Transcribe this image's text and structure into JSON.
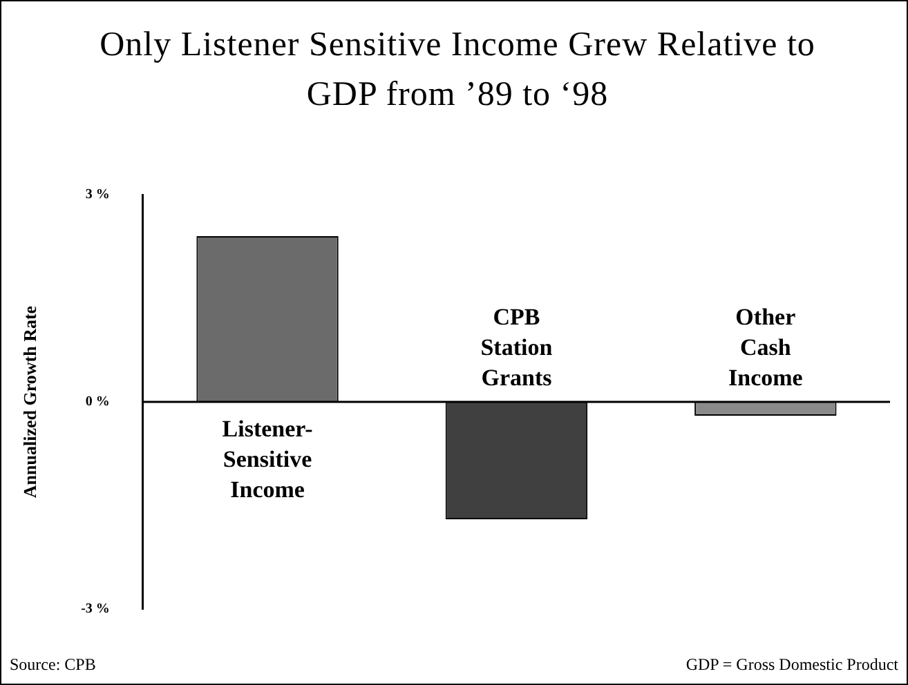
{
  "chart_data": {
    "type": "bar",
    "title": "Only Listener Sensitive Income Grew Relative to GDP from ’89 to ‘98",
    "ylabel": "Annualized Growth Rate",
    "categories": [
      "Listener-Sensitive Income",
      "CPB Station Grants",
      "Other Cash Income"
    ],
    "values": [
      2.4,
      -1.7,
      -0.2
    ],
    "colors": [
      "#6b6b6b",
      "#404040",
      "#8a8a8a"
    ],
    "ylim": [
      -3,
      3
    ],
    "yticks": [
      {
        "value": 3,
        "label": "3 %"
      },
      {
        "value": 0,
        "label": "0 %"
      },
      {
        "value": -3,
        "label": "-3 %"
      }
    ],
    "annotations": [
      "Source: CPB",
      "GDP = Gross Domestic Product"
    ]
  }
}
